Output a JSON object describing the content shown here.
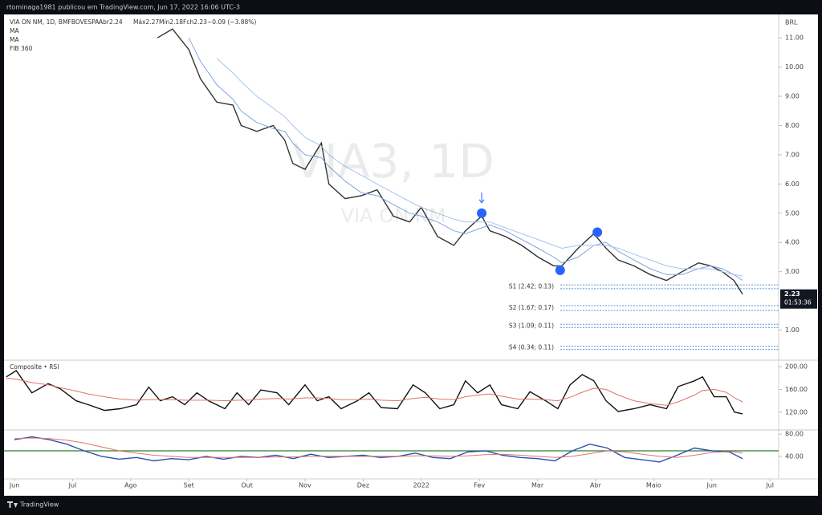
{
  "header": {
    "author_line": "rtominaga1981 publicou em TradingView.com, Jun 17, 2022 16:06 UTC-3"
  },
  "footer": {
    "brand": "TradingView"
  },
  "chart_data": [
    {
      "type": "line",
      "title": "VIA ON NM, 1D, BMFBOVESPA",
      "legend_texts": [
        "Abr2.24",
        "Máx2.27",
        "Mín2.18",
        "Fch2.23",
        "−0.09 (−3.88%)"
      ],
      "indicator_labels": [
        "MA",
        "MA",
        "FIB 360"
      ],
      "watermark": "VIA3, 1D",
      "watermark_subtitle": "VIA ON NM",
      "currency": "BRL",
      "last_value": 2.23,
      "countdown": "01:53:36",
      "xlim": [
        -0.18,
        13.15
      ],
      "xticks": [
        {
          "value": 0,
          "label": "Jun"
        },
        {
          "value": 1,
          "label": "Jul"
        },
        {
          "value": 2,
          "label": "Ago"
        },
        {
          "value": 3,
          "label": "Set"
        },
        {
          "value": 4,
          "label": "Out"
        },
        {
          "value": 5,
          "label": "Nov"
        },
        {
          "value": 6,
          "label": "Dez"
        },
        {
          "value": 7,
          "label": "2022"
        },
        {
          "value": 8,
          "label": "Fev"
        },
        {
          "value": 9,
          "label": "Mar"
        },
        {
          "value": 10,
          "label": "Abr"
        },
        {
          "value": 11,
          "label": "Maio"
        },
        {
          "value": 12,
          "label": "Jun"
        },
        {
          "value": 13,
          "label": "Jul"
        }
      ],
      "ylim": [
        0,
        11.8
      ],
      "yticks": [
        {
          "value": 1,
          "label": "1.00"
        },
        {
          "value": 3,
          "label": "3.00"
        },
        {
          "value": 4,
          "label": "4.00"
        },
        {
          "value": 5,
          "label": "5.00"
        },
        {
          "value": 6,
          "label": "6.00"
        },
        {
          "value": 7,
          "label": "7.00"
        },
        {
          "value": 8,
          "label": "8.00"
        },
        {
          "value": 9,
          "label": "9.00"
        },
        {
          "value": 10,
          "label": "10.00"
        },
        {
          "value": 11,
          "label": "11.00"
        }
      ],
      "x": [
        2.46,
        2.72,
        3.0,
        3.2,
        3.48,
        3.76,
        3.9,
        4.17,
        4.45,
        4.65,
        4.79,
        5.0,
        5.28,
        5.41,
        5.69,
        5.97,
        6.24,
        6.52,
        6.8,
        7.0,
        7.28,
        7.56,
        7.76,
        8.04,
        8.18,
        8.45,
        8.73,
        9.01,
        9.28,
        9.42,
        9.7,
        9.97,
        10.18,
        10.39,
        10.66,
        10.94,
        11.22,
        11.49,
        11.77,
        11.98,
        12.18,
        12.38,
        12.53
      ],
      "series": [
        {
          "color": "#333333",
          "values": [
            11.0,
            11.3,
            10.6,
            9.6,
            8.8,
            8.7,
            8.0,
            7.8,
            8.0,
            7.5,
            6.7,
            6.5,
            7.4,
            6.0,
            5.5,
            5.6,
            5.8,
            4.9,
            4.7,
            5.2,
            4.2,
            3.9,
            4.4,
            4.9,
            4.4,
            4.2,
            3.9,
            3.5,
            3.2,
            3.2,
            3.8,
            4.3,
            3.8,
            3.4,
            3.2,
            2.9,
            2.7,
            3.0,
            3.3,
            3.2,
            3.0,
            2.7,
            2.23
          ]
        },
        {
          "color": "#7fa7e0",
          "values": [
            null,
            null,
            11.0,
            10.2,
            9.4,
            8.9,
            8.5,
            8.1,
            7.9,
            7.8,
            7.4,
            7.0,
            6.9,
            6.6,
            6.1,
            5.7,
            5.6,
            5.3,
            5.0,
            4.9,
            4.7,
            4.4,
            4.3,
            4.5,
            4.6,
            4.4,
            4.1,
            3.8,
            3.5,
            3.3,
            3.5,
            3.9,
            4.0,
            3.7,
            3.4,
            3.1,
            2.9,
            2.9,
            3.1,
            3.2,
            3.1,
            2.9,
            2.7
          ]
        },
        {
          "color": "#a9c3ec",
          "values": [
            null,
            null,
            null,
            null,
            10.3,
            9.8,
            9.5,
            9.0,
            8.6,
            8.3,
            8.0,
            7.6,
            7.3,
            7.0,
            6.6,
            6.3,
            6.0,
            5.7,
            5.4,
            5.2,
            5.0,
            4.8,
            4.7,
            4.7,
            4.7,
            4.5,
            4.3,
            4.1,
            3.9,
            3.8,
            3.9,
            3.9,
            3.9,
            3.8,
            3.6,
            3.4,
            3.2,
            3.1,
            3.1,
            3.1,
            3.0,
            2.9,
            2.85
          ]
        }
      ],
      "markers": [
        {
          "x": 8.04,
          "y": 5.0
        },
        {
          "x": 9.39,
          "y": 3.05
        },
        {
          "x": 10.03,
          "y": 4.35
        }
      ],
      "marker_color": "#2962ff",
      "levels": [
        {
          "label": "S1 (2.42; 0.13)",
          "value": 2.42,
          "width": 0.13
        },
        {
          "label": "S2 (1.67; 0.17)",
          "value": 1.67,
          "width": 0.17
        },
        {
          "label": "S3 (1.09; 0.11)",
          "value": 1.09,
          "width": 0.11
        },
        {
          "label": "S4 (0.34; 0.11)",
          "value": 0.34,
          "width": 0.11
        }
      ],
      "level_color": "#5b8fd9"
    },
    {
      "type": "line",
      "title": "Composite • RSI",
      "ylim": [
        90,
        210
      ],
      "yticks": [
        {
          "value": 120,
          "label": "120.00"
        },
        {
          "value": 160,
          "label": "160.00"
        },
        {
          "value": 200,
          "label": "200.00"
        }
      ],
      "x": [
        -0.14,
        0.03,
        0.3,
        0.58,
        0.79,
        1.06,
        1.27,
        1.55,
        1.82,
        2.1,
        2.31,
        2.51,
        2.72,
        2.93,
        3.14,
        3.34,
        3.62,
        3.83,
        4.03,
        4.24,
        4.52,
        4.72,
        5.0,
        5.21,
        5.41,
        5.62,
        5.9,
        6.1,
        6.31,
        6.59,
        6.86,
        7.07,
        7.32,
        7.56,
        7.76,
        7.97,
        8.18,
        8.38,
        8.66,
        8.87,
        9.14,
        9.35,
        9.56,
        9.77,
        9.97,
        10.18,
        10.39,
        10.66,
        10.94,
        11.22,
        11.42,
        11.7,
        11.84,
        12.04,
        12.25,
        12.39,
        12.53
      ],
      "series": [
        {
          "color": "#111111",
          "values": [
            182,
            193,
            154,
            170,
            161,
            140,
            133,
            123,
            126,
            133,
            164,
            140,
            147,
            133,
            154,
            140,
            126,
            154,
            133,
            159,
            154,
            133,
            168,
            140,
            147,
            126,
            140,
            154,
            128,
            126,
            168,
            154,
            126,
            133,
            175,
            154,
            168,
            133,
            126,
            156,
            140,
            126,
            168,
            186,
            175,
            140,
            121,
            126,
            133,
            126,
            165,
            175,
            182,
            147,
            147,
            120,
            117
          ]
        },
        {
          "color": "#e0736b",
          "values": [
            180,
            178,
            172,
            168,
            163,
            157,
            152,
            147,
            143,
            141,
            142,
            142,
            142,
            141,
            141,
            141,
            140,
            141,
            141,
            143,
            144,
            143,
            145,
            145,
            144,
            142,
            142,
            143,
            141,
            140,
            144,
            146,
            143,
            142,
            147,
            150,
            152,
            148,
            143,
            143,
            142,
            140,
            146,
            155,
            162,
            160,
            150,
            140,
            135,
            132,
            138,
            150,
            158,
            160,
            155,
            145,
            138
          ]
        }
      ]
    },
    {
      "type": "line",
      "ylim": [
        1,
        86
      ],
      "yticks": [
        {
          "value": 40,
          "label": "40.00"
        },
        {
          "value": 80,
          "label": "80.00"
        }
      ],
      "hlines": [
        {
          "value": 50,
          "color": "#2e7d32"
        }
      ],
      "x": [
        0,
        0.3,
        0.6,
        0.9,
        1.2,
        1.5,
        1.8,
        2.1,
        2.4,
        2.7,
        3.0,
        3.3,
        3.6,
        3.9,
        4.2,
        4.5,
        4.8,
        5.1,
        5.4,
        5.7,
        6.0,
        6.3,
        6.6,
        6.9,
        7.2,
        7.5,
        7.8,
        8.1,
        8.4,
        8.7,
        9.0,
        9.3,
        9.6,
        9.9,
        10.2,
        10.5,
        10.8,
        11.1,
        11.4,
        11.7,
        12.0,
        12.3,
        12.53
      ],
      "series": [
        {
          "color": "#2c4fb5",
          "values": [
            70,
            75,
            70,
            62,
            50,
            40,
            35,
            38,
            32,
            36,
            34,
            40,
            35,
            40,
            38,
            42,
            36,
            44,
            38,
            40,
            42,
            38,
            40,
            46,
            38,
            36,
            48,
            50,
            42,
            38,
            36,
            32,
            50,
            62,
            55,
            38,
            34,
            30,
            42,
            55,
            50,
            48,
            36
          ]
        },
        {
          "color": "#e0736b",
          "values": [
            72,
            73,
            72,
            69,
            64,
            57,
            50,
            46,
            42,
            40,
            38,
            38,
            38,
            38,
            38,
            39,
            39,
            40,
            40,
            40,
            40,
            40,
            40,
            41,
            41,
            40,
            41,
            43,
            44,
            42,
            40,
            38,
            40,
            45,
            50,
            48,
            44,
            40,
            38,
            42,
            47,
            49,
            46
          ]
        }
      ]
    }
  ]
}
